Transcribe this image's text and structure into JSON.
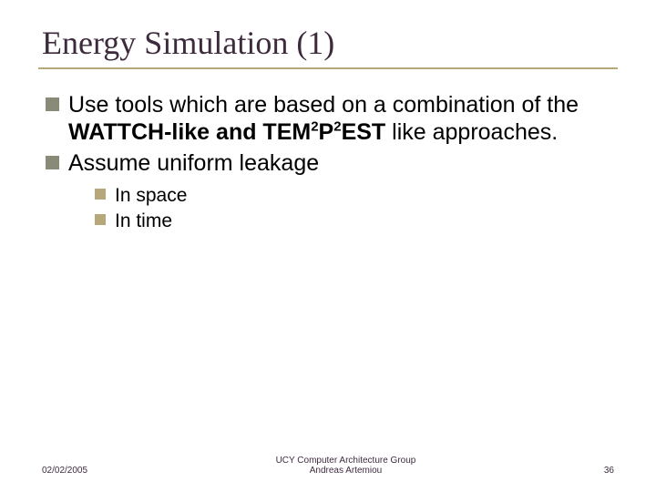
{
  "title": "Energy Simulation (1)",
  "bullets_l1": [
    {
      "pre": "Use tools which are based on a combination of the ",
      "bold1": "WATTCH-like and TEM",
      "sup1": "2",
      "bold2": "P",
      "sup2": "2",
      "bold3": "EST",
      "post": " like approaches."
    },
    {
      "pre": "Assume uniform leakage"
    }
  ],
  "bullets_l2": [
    "In space",
    "In time"
  ],
  "footer": {
    "date": "02/02/2005",
    "group_line1": "UCY Computer Architecture Group",
    "group_line2": "Andreas Artemiou",
    "page": "36"
  },
  "colors": {
    "title": "#3d2b3d",
    "rule": "#b6a87a",
    "l1_square": "#8a8a78",
    "l2_square": "#b6a87a",
    "footer_text": "#3d2b3d"
  },
  "fontsizes": {
    "title": 36,
    "l1": 25,
    "l2": 21,
    "footer": 10
  }
}
